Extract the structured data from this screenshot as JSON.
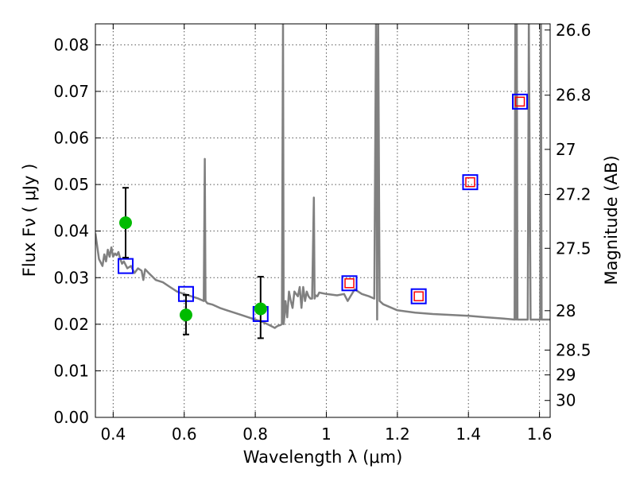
{
  "chart_data": {
    "type": "scatter",
    "xlabel": "Wavelength  λ (μm)",
    "ylabel": "Flux  Fν  ( μJy )",
    "y2label": "Magnitude (AB)",
    "xlim": [
      0.35,
      1.63
    ],
    "ylim": [
      0.0,
      0.0845
    ],
    "grid": true,
    "x_ticks": [
      0.4,
      0.6,
      0.8,
      1.0,
      1.2,
      1.4,
      1.6
    ],
    "x_tick_labels": [
      "0.4",
      "0.6",
      "0.8",
      "1",
      "1.2",
      "1.4",
      "1.6"
    ],
    "y_ticks": [
      0.0,
      0.01,
      0.02,
      0.03,
      0.04,
      0.05,
      0.06,
      0.07,
      0.08
    ],
    "y_tick_labels": [
      "0.00",
      "0.01",
      "0.02",
      "0.03",
      "0.04",
      "0.05",
      "0.06",
      "0.07",
      "0.08"
    ],
    "y2_ticks": [
      {
        "label": "26.6",
        "mag": 26.6
      },
      {
        "label": "26.8",
        "mag": 26.8
      },
      {
        "label": "27",
        "mag": 27.0
      },
      {
        "label": "27.2",
        "mag": 27.2
      },
      {
        "label": "27.5",
        "mag": 27.5
      },
      {
        "label": "28",
        "mag": 28.0
      },
      {
        "label": "28.5",
        "mag": 28.5
      },
      {
        "label": "29",
        "mag": 29.0
      },
      {
        "label": "30",
        "mag": 30.0
      }
    ],
    "series": [
      {
        "type": "line",
        "color": "#808080",
        "x": [
          0.35,
          0.36,
          0.37,
          0.375,
          0.38,
          0.385,
          0.39,
          0.395,
          0.4,
          0.405,
          0.41,
          0.415,
          0.42,
          0.425,
          0.43,
          0.44,
          0.45,
          0.46,
          0.47,
          0.48,
          0.485,
          0.49,
          0.5,
          0.52,
          0.54,
          0.56,
          0.58,
          0.6,
          0.62,
          0.64,
          0.655,
          0.658,
          0.66,
          0.662,
          0.665,
          0.68,
          0.7,
          0.72,
          0.74,
          0.76,
          0.78,
          0.8,
          0.82,
          0.84,
          0.855,
          0.86,
          0.865,
          0.87,
          0.875,
          0.878,
          0.88,
          0.882,
          0.885,
          0.89,
          0.895,
          0.9,
          0.905,
          0.91,
          0.915,
          0.92,
          0.925,
          0.93,
          0.935,
          0.94,
          0.945,
          0.95,
          0.955,
          0.96,
          0.965,
          0.967,
          0.97,
          0.975,
          0.98,
          1.0,
          1.03,
          1.05,
          1.06,
          1.08,
          1.1,
          1.12,
          1.135,
          1.14,
          1.143,
          1.146,
          1.15,
          1.16,
          1.2,
          1.25,
          1.3,
          1.35,
          1.4,
          1.45,
          1.5,
          1.53,
          1.532,
          1.534,
          1.536,
          1.538,
          1.56,
          1.565,
          1.567,
          1.57,
          1.575,
          1.6,
          1.602,
          1.604,
          1.606,
          1.608,
          1.63
        ],
        "y": [
          0.0395,
          0.034,
          0.0325,
          0.035,
          0.0335,
          0.036,
          0.0345,
          0.0365,
          0.0345,
          0.0352,
          0.0348,
          0.0355,
          0.034,
          0.033,
          0.0335,
          0.032,
          0.0325,
          0.031,
          0.032,
          0.0315,
          0.0295,
          0.0318,
          0.031,
          0.0295,
          0.029,
          0.028,
          0.027,
          0.0265,
          0.026,
          0.0255,
          0.025,
          0.0555,
          0.025,
          0.0248,
          0.0245,
          0.0242,
          0.0235,
          0.023,
          0.0225,
          0.022,
          0.0215,
          0.021,
          0.0205,
          0.0198,
          0.0192,
          0.0195,
          0.0197,
          0.0198,
          0.02,
          0.085,
          0.02,
          0.0215,
          0.025,
          0.0215,
          0.027,
          0.025,
          0.0235,
          0.027,
          0.0265,
          0.026,
          0.028,
          0.0235,
          0.028,
          0.025,
          0.027,
          0.026,
          0.0255,
          0.0255,
          0.0472,
          0.0255,
          0.0262,
          0.026,
          0.0268,
          0.0265,
          0.0262,
          0.0265,
          0.025,
          0.0275,
          0.0265,
          0.026,
          0.0255,
          0.0852,
          0.021,
          0.085,
          0.025,
          0.0243,
          0.023,
          0.0225,
          0.0222,
          0.022,
          0.0218,
          0.0215,
          0.0212,
          0.021,
          0.085,
          0.021,
          0.085,
          0.021,
          0.021,
          0.021,
          0.021,
          0.085,
          0.021,
          0.021,
          0.021,
          0.085,
          0.021,
          0.021,
          0.021
        ]
      },
      {
        "type": "scatter",
        "marker": "open-square",
        "color": "#0000ff",
        "x": [
          0.435,
          0.605,
          0.815,
          1.065,
          1.26,
          1.405,
          1.545
        ],
        "y": [
          0.0325,
          0.0265,
          0.0222,
          0.0288,
          0.026,
          0.0505,
          0.0678
        ]
      },
      {
        "type": "scatter",
        "marker": "small-open-square",
        "color": "#ff0000",
        "x": [
          1.065,
          1.26,
          1.405,
          1.545
        ],
        "y": [
          0.0288,
          0.026,
          0.0505,
          0.0678
        ]
      },
      {
        "type": "scatter",
        "marker": "circle",
        "color": "#00bb00",
        "x": [
          0.435,
          0.605,
          0.815
        ],
        "y": [
          0.0418,
          0.022,
          0.0233
        ],
        "yerr_low": [
          0.0343,
          0.0178,
          0.017
        ],
        "yerr_high": [
          0.0493,
          0.0263,
          0.0302
        ]
      }
    ]
  }
}
